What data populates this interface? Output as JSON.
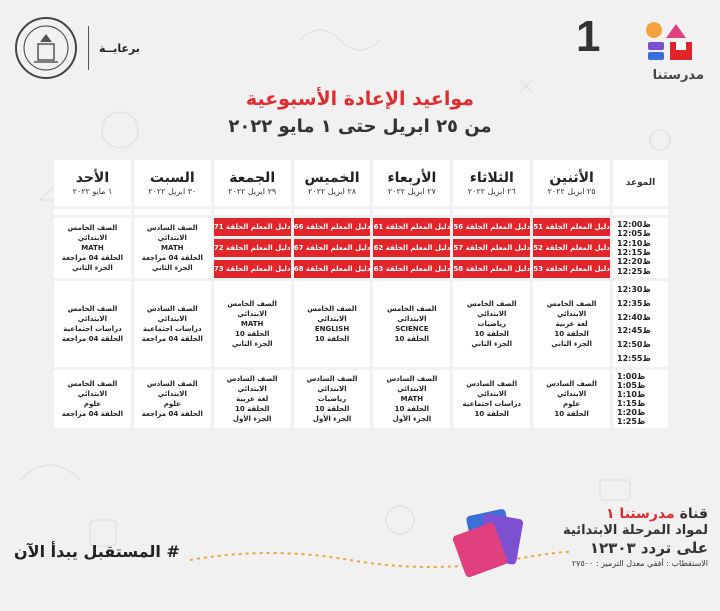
{
  "header": {
    "sponsor_label": "برعايــة",
    "brand_number": "1",
    "brand_name": "مدرستنا"
  },
  "title": "مواعيد الإعادة الأسبوعية",
  "subtitle": "من ٢٥ ابريل حتى ١ مايو ٢٠٢٢",
  "table": {
    "time_header": "الموعد",
    "days": [
      {
        "name": "الأثنين",
        "date": "٢٥ ابريل ٢٠٢٢"
      },
      {
        "name": "الثلاثاء",
        "date": "٢٦ ابريل ٢٠٢٢"
      },
      {
        "name": "الأربعاء",
        "date": "٢٧ ابريل ٢٠٢٢"
      },
      {
        "name": "الخميس",
        "date": "٢٨ ابريل ٢٠٢٢"
      },
      {
        "name": "الجمعة",
        "date": "٢٩ ابريل ٢٠٢٢"
      },
      {
        "name": "السبت",
        "date": "٣٠ ابريل ٢٠٢٢"
      },
      {
        "name": "الأحد",
        "date": "١ مايو ٢٠٢٢"
      }
    ],
    "time_blocks": [
      [
        "12:00ظ",
        "12:05ظ",
        "12:10ظ",
        "12:15ظ",
        "12:20ظ",
        "12:25ظ"
      ],
      [
        "12:30ظ",
        "12:35ظ",
        "12:40ظ",
        "12:45ظ",
        "12:50ظ",
        "12:55ظ"
      ],
      [
        "1:00ظ",
        "1:05ظ",
        "1:10ظ",
        "1:15ظ",
        "1:20ظ",
        "1:25ظ"
      ]
    ],
    "red_rows": [
      [
        "دليل المعلم الحلقة 51",
        "دليل المعلم الحلقة 56",
        "دليل المعلم الحلقة 61",
        "دليل المعلم الحلقة 66",
        "دليل المعلم الحلقة 71"
      ],
      [
        "دليل المعلم الحلقة 52",
        "دليل المعلم الحلقة 57",
        "دليل المعلم الحلقة 62",
        "دليل المعلم الحلقة 67",
        "دليل المعلم الحلقة 72"
      ],
      [
        "دليل المعلم الحلقة 53",
        "دليل المعلم الحلقة 58",
        "دليل المعلم الحلقة 63",
        "دليل المعلم الحلقة 68",
        "دليل المعلم الحلقة 73"
      ]
    ],
    "block1_sat": [
      "الصف السادس الابتدائي",
      "MATH",
      "الحلقة 04 مراجعة",
      "الجزء الثاني"
    ],
    "block1_sun": [
      "الصف الخامس الابتدائي",
      "MATH",
      "الحلقة 04 مراجعة",
      "الجزء الثاني"
    ],
    "block2": [
      [
        "الصف الخامس الابتدائي",
        "لغة عربية",
        "الحلقة 10",
        "الجزء الثاني"
      ],
      [
        "الصف الخامس الابتدائي",
        "رياضيات",
        "الحلقة 10",
        "الجزء الثاني"
      ],
      [
        "الصف الخامس الابتدائي",
        "SCIENCE",
        "الحلقة 10"
      ],
      [
        "الصف الخامس الابتدائي",
        "ENGLISH",
        "الحلقة 10"
      ],
      [
        "الصف الخامس الابتدائي",
        "MATH",
        "الحلقة 10",
        "الجزء الثاني"
      ],
      [
        "الصف السادس الابتدائي",
        "دراسات اجتماعية",
        "الحلقة 04 مراجعة"
      ],
      [
        "الصف الخامس الابتدائي",
        "دراسات اجتماعية",
        "الحلقة 04 مراجعة"
      ]
    ],
    "block3": [
      [
        "الصف السادس الابتدائي",
        "علوم",
        "الحلقة 10"
      ],
      [
        "الصف السادس الابتدائي",
        "دراسات اجتماعية",
        "الحلقة 10"
      ],
      [
        "الصف السادس الابتدائي",
        "MATH",
        "الحلقة 10",
        "الجزء الأول"
      ],
      [
        "الصف السادس الابتدائي",
        "رياضيات",
        "الحلقة 10",
        "الجزء الأول"
      ],
      [
        "الصف السادس الابتدائي",
        "لغة عربية",
        "الحلقة 10",
        "الجزء الأول"
      ],
      [
        "الصف السادس الابتدائي",
        "علوم",
        "الحلقة 04 مراجعة"
      ],
      [
        "الصف الخامس الابتدائي",
        "علوم",
        "الحلقة 04 مراجعة"
      ]
    ]
  },
  "footer": {
    "hashtag": "# المستقبل يبدأ الآن",
    "channel_prefix": "قناة",
    "channel_name": "مدرستنا ١",
    "line2": "لمواد المرحلة الابتدائية",
    "line3": "على تردد ١٢٣٠٣",
    "line4": "الاستقطاب : أفقي معدل الترميز : ٢٧٥٠٠"
  },
  "colors": {
    "accent_red": "#e2252b",
    "orange": "#f2a23c",
    "pink": "#e0407e",
    "blue": "#3a6fd8",
    "purple": "#7d4fd1"
  }
}
